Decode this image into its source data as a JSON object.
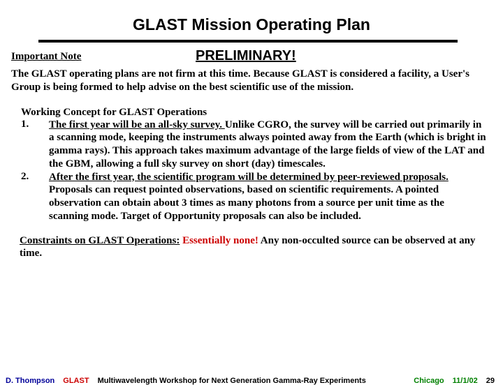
{
  "title": "GLAST Mission Operating Plan",
  "importantNote": {
    "label": "Important Note",
    "preliminary": "PRELIMINARY!",
    "body": "The GLAST operating plans are not firm at this time.  Because GLAST is considered a facility, a User's Group is being formed to help advise on the best scientific use of the mission."
  },
  "workingConcept": {
    "heading": "Working Concept for GLAST Operations",
    "items": [
      {
        "num": "1.",
        "lead": "The first year will be an all-sky survey.  ",
        "rest": "Unlike CGRO, the survey will be carried out primarily in a scanning mode, keeping the instruments always pointed away from the Earth (which is bright in gamma rays).  This approach takes maximum advantage of the large fields of view of the LAT and the GBM, allowing a full sky survey on short (day) timescales."
      },
      {
        "num": "2.",
        "lead": "After the first year, the scientific program will be determined by peer-reviewed proposals.",
        "rest": "  Proposals can request pointed observations, based on scientific requirements.  A pointed observation can obtain about 3 times as many photons from a source per unit time as the scanning mode.  Target of Opportunity proposals can also be included."
      }
    ]
  },
  "constraints": {
    "label": "Constraints on GLAST Operations:",
    "highlight": "Essentially none!",
    "rest": "  Any non-occulted source can be observed at any time."
  },
  "footer": {
    "author": "D. Thompson",
    "mission": "GLAST",
    "event": "Multiwavelength Workshop for Next Generation Gamma-Ray Experiments",
    "location": "Chicago",
    "date": "11/1/02",
    "page": "29"
  },
  "colors": {
    "red": "#cc0000",
    "blue": "#000099",
    "green": "#008000",
    "black": "#000000"
  }
}
